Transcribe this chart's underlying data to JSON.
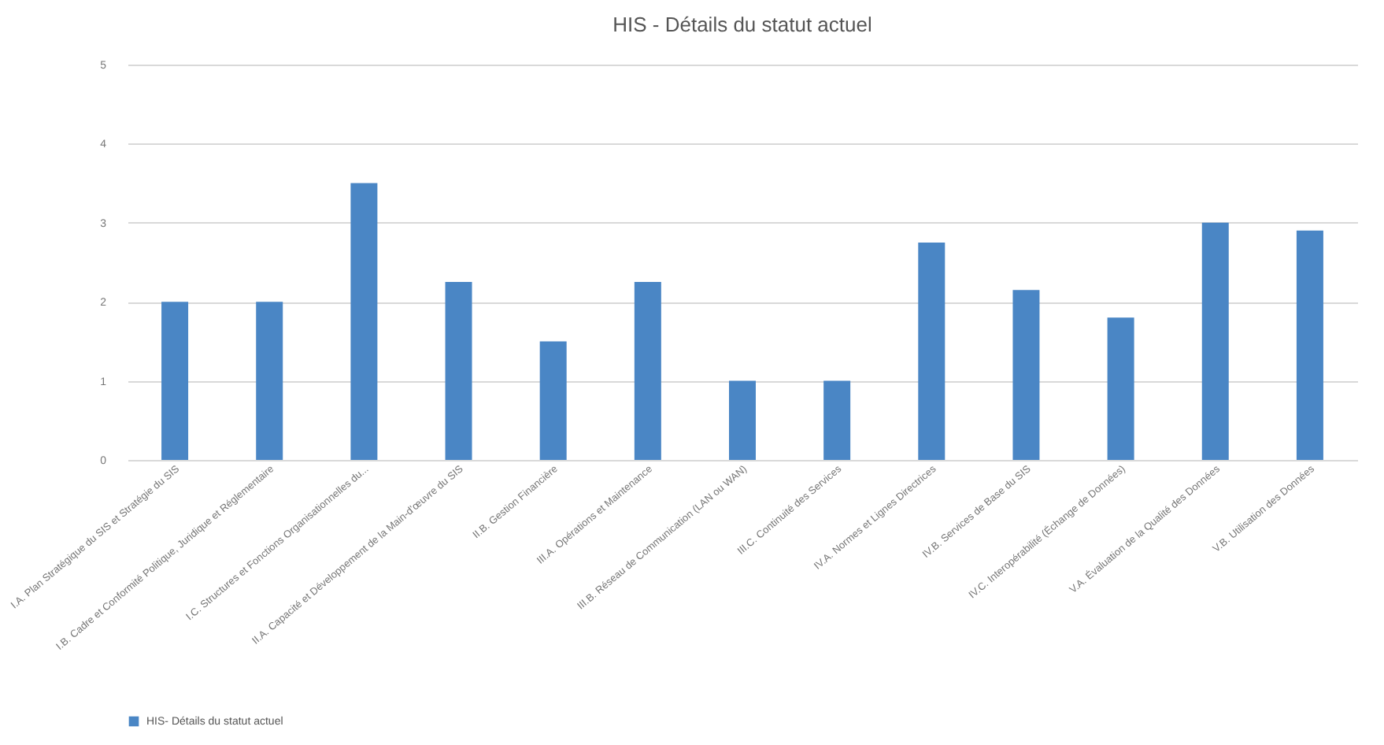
{
  "chart_data": {
    "type": "bar",
    "title": "HIS - Détails du statut actuel",
    "categories": [
      "I.A. Plan Stratégique du SIS et Stratégie du SIS",
      "I.B. Cadre et Conformité Politique, Juridique et Réglementaire",
      "I.C. Structures et Fonctions Organisationnelles du...",
      "II.A. Capacité et Développement de la Main-d'œuvre du SIS",
      "II.B. Gestion Financière",
      "III.A. Opérations et Maintenance",
      "III.B. Réseau de Communication (LAN ou WAN)",
      "III.C. Continuité des Services",
      "IV.A. Normes et Lignes Directrices",
      "IV.B. Services de Base du SIS",
      "IV.C. Interopérabilité (Échange de Données)",
      "V.A. Évaluation de la Qualité des Données",
      "V.B. Utilisation des Données"
    ],
    "series": [
      {
        "name": "HIS- Détails du statut actuel",
        "color": "#4a86c5",
        "values": [
          2,
          2,
          3.5,
          2.25,
          1.5,
          2.25,
          1,
          1,
          2.75,
          2.15,
          1.8,
          3,
          2.9
        ]
      }
    ],
    "ylim": [
      0,
      5
    ],
    "yticks": [
      0,
      1,
      2,
      3,
      4,
      5
    ],
    "grid": "y",
    "legend": "bottom"
  }
}
